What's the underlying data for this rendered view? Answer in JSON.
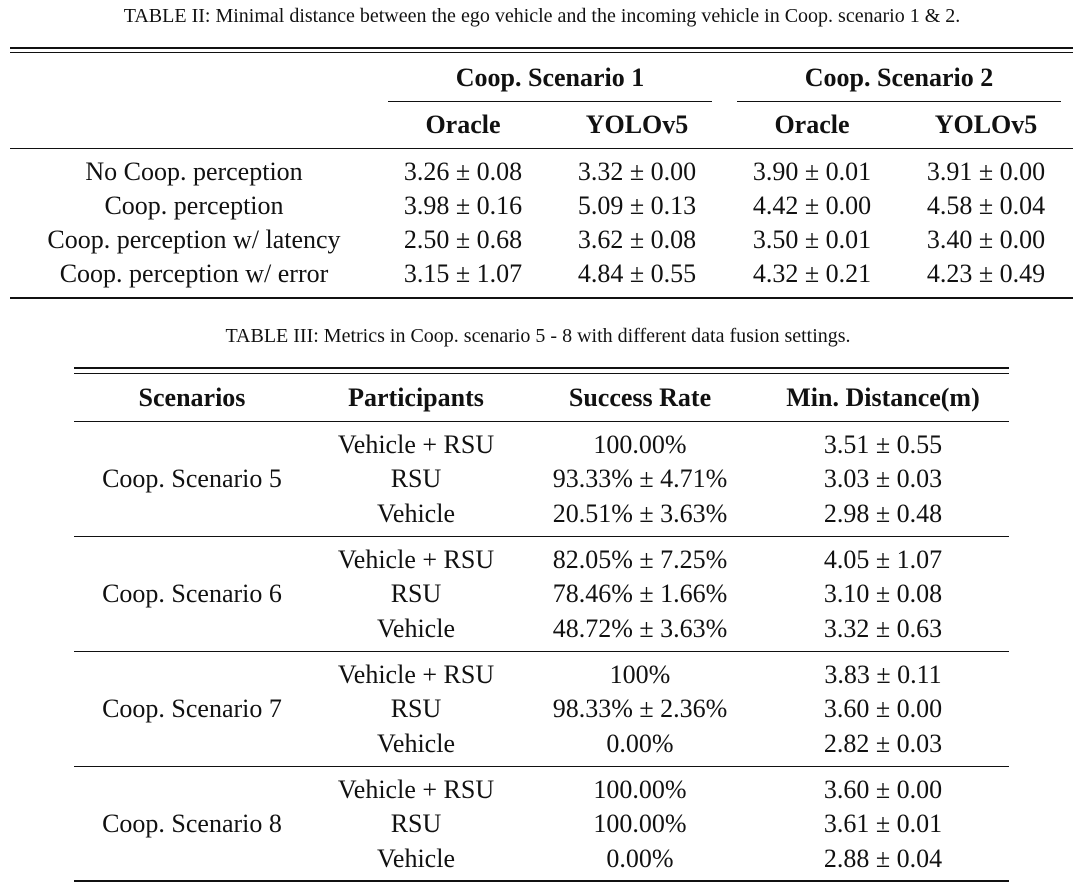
{
  "table2": {
    "caption": "TABLE II: Minimal distance between the ego vehicle and the incoming vehicle in Coop. scenario 1 & 2.",
    "groups": [
      "Coop. Scenario 1",
      "Coop. Scenario 2"
    ],
    "subheaders": [
      "Oracle",
      "YOLOv5",
      "Oracle",
      "YOLOv5"
    ],
    "rows": [
      {
        "label": "No Coop. perception",
        "values": [
          "3.26 ± 0.08",
          "3.32 ± 0.00",
          "3.90 ± 0.01",
          "3.91 ± 0.00"
        ]
      },
      {
        "label": "Coop. perception",
        "values": [
          "3.98 ± 0.16",
          "5.09 ± 0.13",
          "4.42 ± 0.00",
          "4.58 ± 0.04"
        ]
      },
      {
        "label": "Coop. perception w/ latency",
        "values": [
          "2.50 ± 0.68",
          "3.62 ± 0.08",
          "3.50 ± 0.01",
          "3.40 ± 0.00"
        ]
      },
      {
        "label": "Coop. perception w/ error",
        "values": [
          "3.15 ± 1.07",
          "4.84 ± 0.55",
          "4.32 ± 0.21",
          "4.23 ± 0.49"
        ]
      }
    ]
  },
  "table3": {
    "caption": "TABLE III: Metrics in Coop. scenario 5 - 8 with different data fusion settings.",
    "headers": [
      "Scenarios",
      "Participants",
      "Success Rate",
      "Min. Distance(m)"
    ],
    "groups": [
      {
        "scenario": "Coop. Scenario 5",
        "rows": [
          {
            "participant": "Vehicle + RSU",
            "success": "100.00%",
            "distance": "3.51 ± 0.55"
          },
          {
            "participant": "RSU",
            "success": "93.33% ± 4.71%",
            "distance": "3.03 ± 0.03"
          },
          {
            "participant": "Vehicle",
            "success": "20.51% ± 3.63%",
            "distance": "2.98 ± 0.48"
          }
        ]
      },
      {
        "scenario": "Coop. Scenario 6",
        "rows": [
          {
            "participant": "Vehicle + RSU",
            "success": "82.05% ± 7.25%",
            "distance": "4.05 ± 1.07"
          },
          {
            "participant": "RSU",
            "success": "78.46% ± 1.66%",
            "distance": "3.10 ± 0.08"
          },
          {
            "participant": "Vehicle",
            "success": "48.72% ± 3.63%",
            "distance": "3.32 ± 0.63"
          }
        ]
      },
      {
        "scenario": "Coop. Scenario 7",
        "rows": [
          {
            "participant": "Vehicle + RSU",
            "success": "100%",
            "distance": "3.83 ± 0.11"
          },
          {
            "participant": "RSU",
            "success": "98.33% ± 2.36%",
            "distance": "3.60 ± 0.00"
          },
          {
            "participant": "Vehicle",
            "success": "0.00%",
            "distance": "2.82 ± 0.03"
          }
        ]
      },
      {
        "scenario": "Coop. Scenario 8",
        "rows": [
          {
            "participant": "Vehicle + RSU",
            "success": "100.00%",
            "distance": "3.60 ± 0.00"
          },
          {
            "participant": "RSU",
            "success": "100.00%",
            "distance": "3.61 ± 0.01"
          },
          {
            "participant": "Vehicle",
            "success": "0.00%",
            "distance": "2.88 ± 0.04"
          }
        ]
      }
    ]
  }
}
